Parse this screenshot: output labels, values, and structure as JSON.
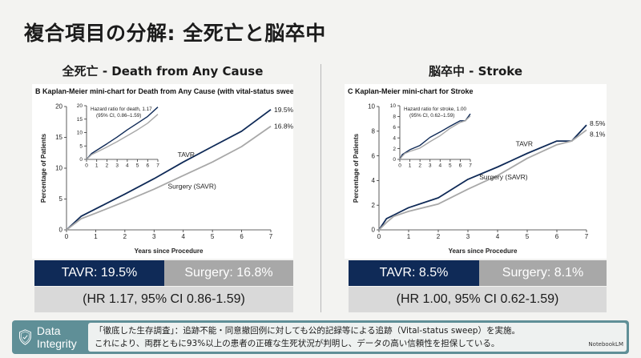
{
  "title": "複合項目の分解: 全死亡と脳卒中",
  "left": {
    "heading": "全死亡 - Death from Any Cause",
    "tavr_label": "TAVR: 19.5%",
    "surgery_label": "Surgery: 16.8%",
    "hr_label": "(HR 1.17, 95% CI 0.86-1.59)"
  },
  "right": {
    "heading": "脳卒中 - Stroke",
    "tavr_label": "TAVR: 8.5%",
    "surgery_label": "Surgery: 8.1%",
    "hr_label": "(HR 1.00, 95% CI 0.62-1.59)"
  },
  "integrity": {
    "label": "Data Integrity",
    "line1": "「徹底した生存調査」：追跡不能・同意撤回例に対しても公的記録等による追跡（Vital-status sweep）を実施。",
    "line2": "これにより、両群ともに93%以上の患者の正確な生死状況が判明し、データの高い信頼性を担保している。",
    "logo": "NotebookLM"
  },
  "colors": {
    "tavr": "#0f2a57",
    "surgery": "#a8a8a8",
    "teal": "#5f8f97"
  },
  "chart_data": [
    {
      "type": "line",
      "panel_letter": "B",
      "title": "Kaplan-Meier mini-chart for Death from Any Cause (with vital-status sweep)",
      "xlabel": "Years since Procedure",
      "ylabel": "Percentage of Patients",
      "xlim": [
        0,
        7
      ],
      "ylim": [
        0,
        20
      ],
      "xticks": [
        "0",
        "1",
        "2",
        "3",
        "4",
        "5",
        "6",
        "7"
      ],
      "yticks": [
        "0",
        "5",
        "10",
        "15",
        "20"
      ],
      "x": [
        0,
        0.5,
        1,
        2,
        3,
        4,
        5,
        6,
        7
      ],
      "series": [
        {
          "name": "TAVR",
          "values": [
            0,
            2.2,
            3.4,
            5.8,
            8.3,
            11.0,
            13.5,
            16.0,
            19.5
          ],
          "end_label": "19.5%"
        },
        {
          "name": "Surgery (SAVR)",
          "values": [
            0,
            1.8,
            2.7,
            4.6,
            6.6,
            8.8,
            11.0,
            13.5,
            16.8
          ],
          "end_label": "16.8%"
        }
      ],
      "inset": {
        "annotation_line1": "Hazard ratio for death, 1.17",
        "annotation_line2": "(95% CI, 0.86–1.59)",
        "ylim": [
          0,
          20
        ],
        "yticks": [
          "0",
          "5",
          "10",
          "15",
          "20"
        ],
        "xticks": [
          "0",
          "1",
          "2",
          "3",
          "4",
          "5",
          "6",
          "7"
        ]
      }
    },
    {
      "type": "line",
      "panel_letter": "C",
      "title": "Kaplan-Meier mini-chart for Stroke",
      "xlabel": "Years since Procedure",
      "ylabel": "Percentage of Patients",
      "xlim": [
        0,
        7
      ],
      "ylim": [
        0,
        10
      ],
      "xticks": [
        "0",
        "1",
        "2",
        "3",
        "4",
        "5",
        "6",
        "7"
      ],
      "yticks": [
        "0",
        "2",
        "4",
        "6",
        "8",
        "10"
      ],
      "x": [
        0,
        0.25,
        0.5,
        1,
        2,
        3,
        4,
        5,
        6,
        6.5,
        7
      ],
      "series": [
        {
          "name": "TAVR",
          "values": [
            0,
            0.9,
            1.2,
            1.8,
            2.6,
            4.1,
            5.1,
            6.2,
            7.2,
            7.2,
            8.5
          ],
          "end_label": "8.5%"
        },
        {
          "name": "Surgery (SAVR)",
          "values": [
            0,
            0.6,
            1.1,
            1.5,
            2.1,
            3.3,
            4.4,
            5.8,
            6.9,
            7.2,
            8.1
          ],
          "end_label": "8.1%"
        }
      ],
      "inset": {
        "annotation_line1": "Hazard ratio for stroke, 1.00",
        "annotation_line2": "(95% CI, 0.62–1.59)",
        "ylim": [
          0,
          10
        ],
        "yticks": [
          "0",
          "2",
          "4",
          "6",
          "8",
          "10"
        ],
        "xticks": [
          "0",
          "1",
          "2",
          "3",
          "4",
          "5",
          "6",
          "7"
        ]
      }
    }
  ]
}
